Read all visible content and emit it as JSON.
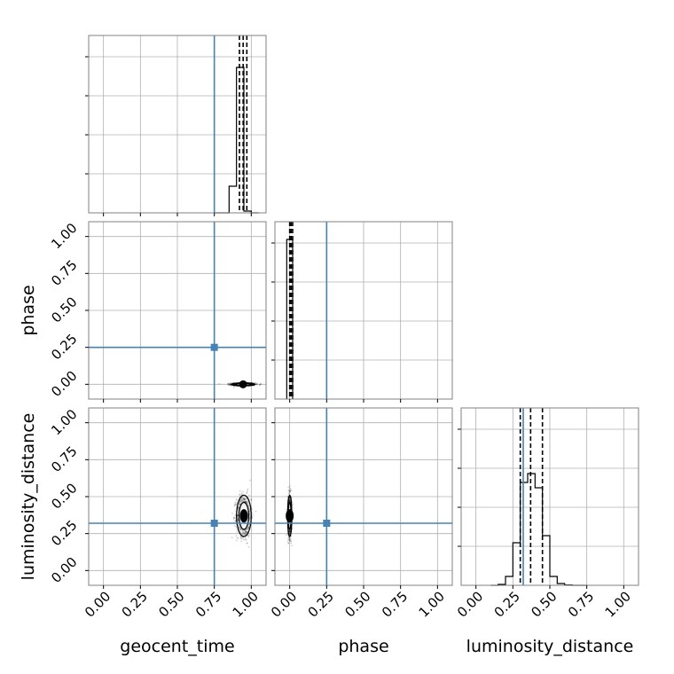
{
  "chart_data": {
    "type": "corner",
    "parameters": [
      "geocent_time",
      "phase",
      "luminosity_distance"
    ],
    "axis_range": [
      -0.1,
      1.1
    ],
    "ticks": [
      0.0,
      0.25,
      0.5,
      0.75,
      1.0
    ],
    "tick_labels": [
      "0.00",
      "0.25",
      "0.50",
      "0.75",
      "1.00"
    ],
    "grid": true,
    "truth_color": "#4682b4",
    "truths": {
      "geocent_time": 0.75,
      "phase": 0.25,
      "luminosity_distance": 0.32
    },
    "diagonal": [
      {
        "parameter": "geocent_time",
        "bin_edges": [
          0.75,
          0.8,
          0.85,
          0.9,
          0.95,
          1.0,
          1.05
        ],
        "values": [
          0,
          0,
          0.15,
          0.82,
          0.01,
          0
        ],
        "quantiles": [
          0.92,
          0.945,
          0.97
        ]
      },
      {
        "parameter": "phase",
        "bin_edges": [
          -0.02,
          0.02
        ],
        "values": [
          0.9
        ],
        "quantiles": [
          0.0,
          0.01,
          0.02
        ]
      },
      {
        "parameter": "luminosity_distance",
        "bin_edges": [
          0.1,
          0.15,
          0.2,
          0.25,
          0.3,
          0.35,
          0.4,
          0.45,
          0.5,
          0.55,
          0.6,
          0.65,
          0.7,
          0.75
        ],
        "values": [
          0,
          0.005,
          0.05,
          0.24,
          0.58,
          0.63,
          0.55,
          0.28,
          0.05,
          0.01,
          0.002,
          0,
          0
        ],
        "quantiles": [
          0.3,
          0.37,
          0.45
        ]
      }
    ],
    "pairs": [
      {
        "x": "geocent_time",
        "y": "phase",
        "center": [
          0.945,
          0.0
        ],
        "spread": [
          0.04,
          0.005
        ]
      },
      {
        "x": "geocent_time",
        "y": "luminosity_distance",
        "center": [
          0.95,
          0.37
        ],
        "spread": [
          0.025,
          0.07
        ]
      },
      {
        "x": "phase",
        "y": "luminosity_distance",
        "center": [
          0.0,
          0.37
        ],
        "spread": [
          0.007,
          0.07
        ]
      }
    ]
  }
}
